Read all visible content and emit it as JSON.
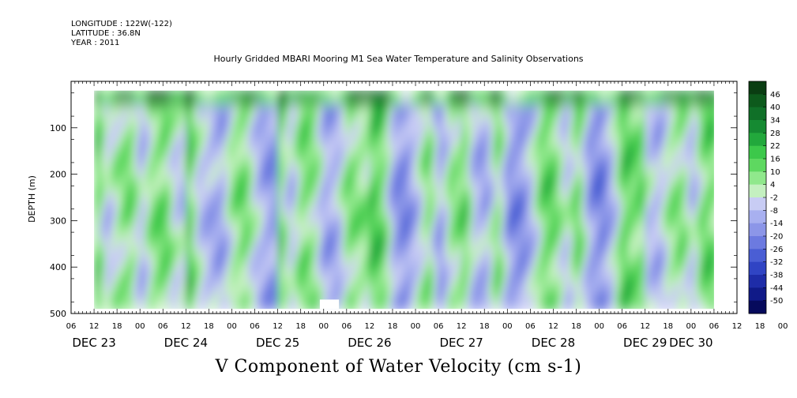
{
  "header": {
    "longitude": "LONGITUDE : 122W(-122)",
    "latitude": "LATITUDE : 36.8N",
    "year": "YEAR : 2011"
  },
  "chart_data": {
    "type": "heatmap",
    "title": "Hourly Gridded MBARI Mooring M1 Sea Water Temperature and Salinity Observations",
    "xlabel": "V Component of Water Velocity (cm s-1)",
    "ylabel": "DEPTH (m)",
    "ylim": [
      500,
      0
    ],
    "y_ticks": [
      "100",
      "200",
      "300",
      "400",
      "500"
    ],
    "x_hour_ticks": [
      "06",
      "12",
      "18",
      "00",
      "06",
      "12",
      "18",
      "00",
      "06",
      "12",
      "18",
      "00",
      "06",
      "12",
      "18",
      "00",
      "06",
      "12",
      "18",
      "00",
      "06",
      "12",
      "18",
      "00",
      "06",
      "12",
      "18",
      "00",
      "06",
      "12",
      "18",
      "00",
      "06"
    ],
    "x_day_labels": [
      "DEC 23",
      "DEC 24",
      "DEC 25",
      "DEC 26",
      "DEC 27",
      "DEC 28",
      "DEC 29",
      "DEC 30"
    ],
    "x_day_label_hours": [
      12,
      12,
      12,
      12,
      12,
      12,
      12,
      0
    ],
    "time_range_hours": [
      "DEC 23 06",
      "DEC 30 12"
    ],
    "data_range_hours": [
      "DEC 23 12",
      "DEC 30 06"
    ],
    "depth_data_range": [
      20,
      490
    ],
    "colorbar": {
      "labels": [
        "46",
        "40",
        "34",
        "28",
        "22",
        "16",
        "10",
        "4",
        "-2",
        "-8",
        "-14",
        "-20",
        "-26",
        "-32",
        "-38",
        "-44",
        "-50"
      ],
      "colors": [
        "#0a3d12",
        "#0d5a1c",
        "#107028",
        "#158a32",
        "#22a83c",
        "#3cc84a",
        "#5ed860",
        "#90e88c",
        "#c4f0c0",
        "#c8ccf4",
        "#a8b0f0",
        "#8c96e8",
        "#6c7ae0",
        "#4a5ed4",
        "#3044c4",
        "#1e2ca8",
        "#101a88",
        "#060a5c"
      ]
    },
    "velocity_columns": [
      {
        "day": "DEC 23",
        "values": [
          14,
          -6,
          4,
          10,
          -8,
          8,
          12,
          -4
        ]
      },
      {
        "day": "DEC 24",
        "values": [
          18,
          -4,
          -10,
          -12,
          6,
          10,
          -6,
          -14
        ]
      },
      {
        "day": "DEC 25",
        "values": [
          12,
          -8,
          10,
          6,
          -12,
          -10,
          8,
          6
        ]
      },
      {
        "day": "DEC 26",
        "values": [
          16,
          12,
          -14,
          -18,
          -6,
          10,
          -14,
          6
        ]
      },
      {
        "day": "DEC 27",
        "values": [
          14,
          -8,
          -12,
          10,
          -16,
          -18,
          -6,
          12
        ]
      },
      {
        "day": "DEC 28",
        "values": [
          10,
          -6,
          12,
          -14,
          -20,
          -8,
          14,
          10
        ]
      },
      {
        "day": "DEC 29",
        "values": [
          -4,
          -10,
          4,
          8,
          -8,
          12,
          10,
          6
        ]
      },
      {
        "day": "DEC 30",
        "values": [
          -10,
          -8,
          -6,
          -4,
          -8,
          -6,
          -4,
          -6
        ]
      }
    ]
  }
}
